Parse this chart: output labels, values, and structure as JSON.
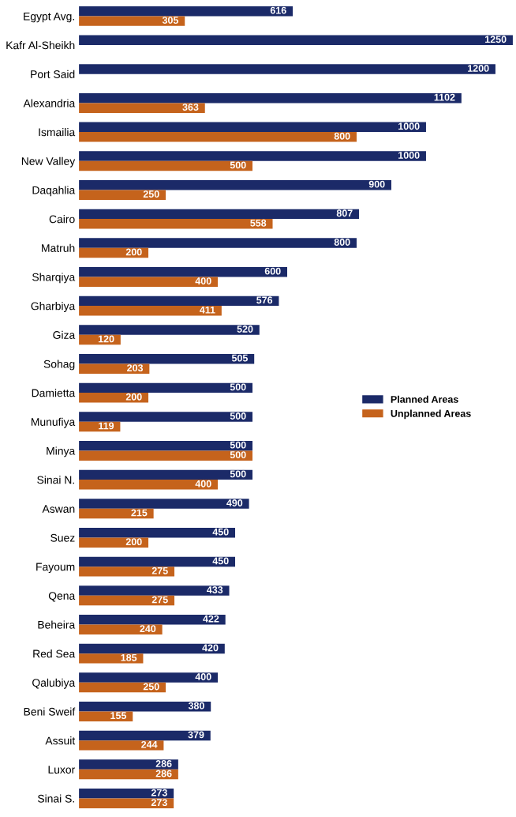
{
  "chart_data": {
    "type": "bar",
    "orientation": "horizontal",
    "data_labels": true,
    "legend": "right",
    "grid": false,
    "categories": [
      "Egypt Avg.",
      "Kafr Al-Sheikh",
      "Port Said",
      "Alexandria",
      "Ismailia",
      "New Valley",
      "Daqahlia",
      "Cairo",
      "Matruh",
      "Sharqiya",
      "Gharbiya",
      "Giza",
      "Sohag",
      "Damietta",
      "Munufiya",
      "Minya",
      "Sinai N.",
      "Aswan",
      "Suez",
      "Fayoum",
      "Qena",
      "Beheira",
      "Red Sea",
      "Qalubiya",
      "Beni Sweif",
      "Assuit",
      "Luxor",
      "Sinai S."
    ],
    "series": [
      {
        "name": "Planned Areas",
        "color": "#1b2a68",
        "values": [
          616,
          1250,
          1200,
          1102,
          1000,
          1000,
          900,
          807,
          800,
          600,
          576,
          520,
          505,
          500,
          500,
          500,
          500,
          490,
          450,
          450,
          433,
          422,
          420,
          400,
          380,
          379,
          286,
          273
        ]
      },
      {
        "name": "Unplanned Areas",
        "color": "#c5631c",
        "values": [
          305,
          null,
          null,
          363,
          800,
          500,
          250,
          558,
          200,
          400,
          411,
          120,
          203,
          200,
          119,
          500,
          400,
          215,
          200,
          275,
          275,
          240,
          185,
          250,
          155,
          244,
          286,
          273
        ]
      }
    ]
  }
}
